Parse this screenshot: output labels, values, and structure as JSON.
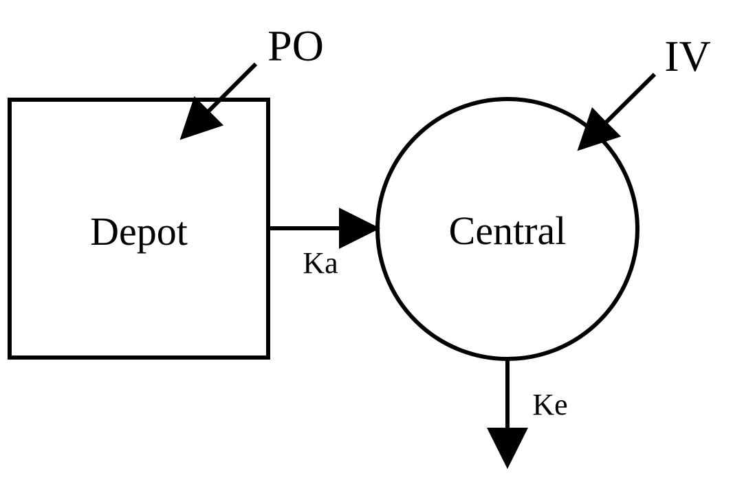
{
  "diagram": {
    "nodes": {
      "depot": {
        "label": "Depot",
        "shape": "square"
      },
      "central": {
        "label": "Central",
        "shape": "circle"
      }
    },
    "inputs": {
      "po": {
        "label": "PO",
        "target": "depot"
      },
      "iv": {
        "label": "IV",
        "target": "central"
      }
    },
    "edges": {
      "absorption": {
        "label": "Ka",
        "from": "depot",
        "to": "central"
      },
      "elimination": {
        "label": "Ke",
        "from": "central",
        "to": "outside"
      }
    }
  },
  "colors": {
    "stroke": "#000000",
    "background": "#ffffff"
  }
}
